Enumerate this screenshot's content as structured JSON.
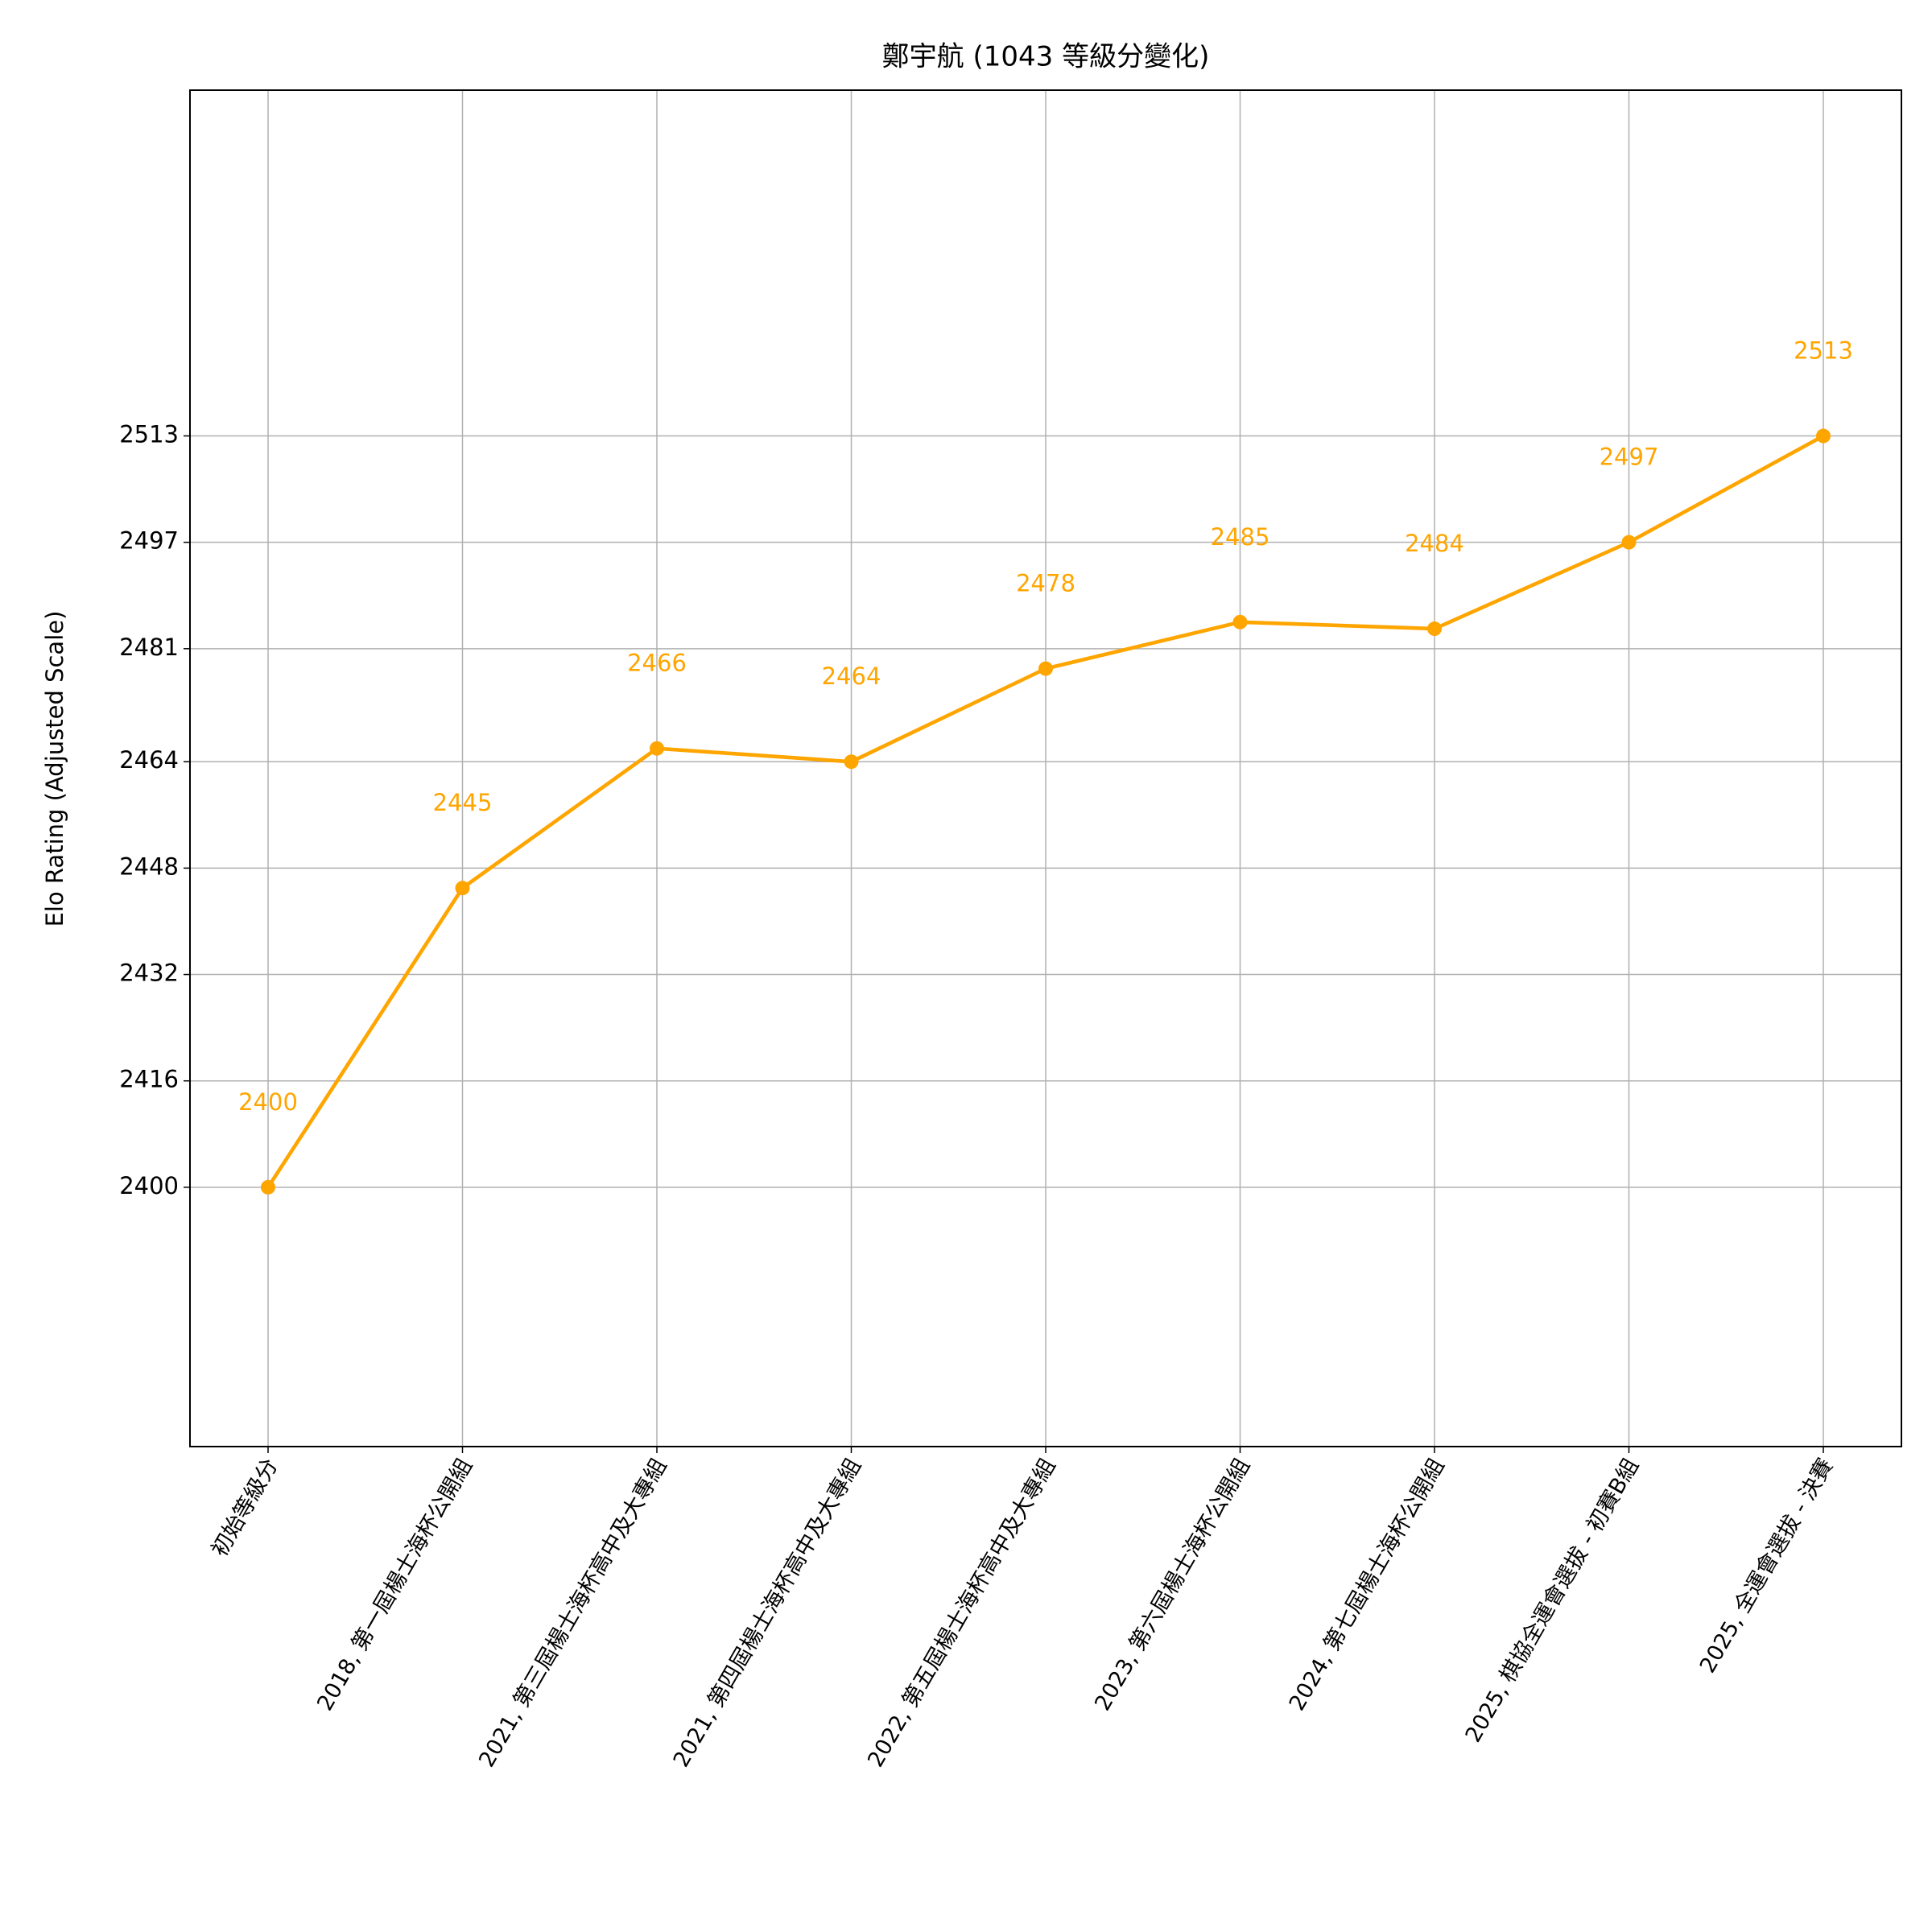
{
  "chart_data": {
    "type": "line",
    "title": "鄭宇航 (1043 等級分變化)",
    "y_label": "Elo Rating (Adjusted Scale)",
    "categories": [
      "初始等級分",
      "2018, 第一屆楊士海杯公開組",
      "2021, 第三屆楊士海杯高中及大專組",
      "2021, 第四屆楊士海杯高中及大專組",
      "2022, 第五屆楊士海杯高中及大專組",
      "2023, 第六屆楊士海杯公開組",
      "2024, 第七屆楊士海杯公開組",
      "2025, 棋協全運會選拔 - 初賽B組",
      "2025, 全運會選拔 - 決賽"
    ],
    "series": [
      {
        "name": "Elo",
        "color": "#ffa500",
        "values": [
          2400,
          2445,
          2466,
          2464,
          2478,
          2485,
          2484,
          2497,
          2513
        ]
      }
    ],
    "ylim": [
      2361,
      2565
    ],
    "yticks": [
      2400,
      2416,
      2432,
      2448,
      2464,
      2481,
      2497,
      2513
    ],
    "grid": true,
    "marker": "circle"
  }
}
